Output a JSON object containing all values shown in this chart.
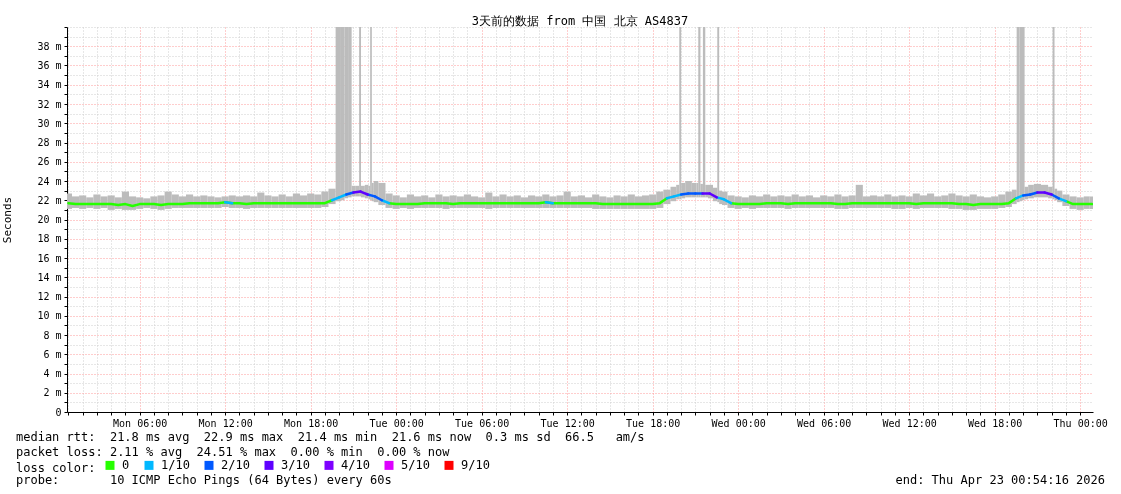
{
  "chart_data": {
    "type": "line",
    "title": "3天前的数据 from 中国 北京 AS4837",
    "ylabel": "Seconds",
    "legend_title": "loss color:",
    "legend": "bottom",
    "grid": true,
    "xlim": [
      "2026-04-20T00:54",
      "2026-04-23T00:54"
    ],
    "ylim": [
      0,
      40
    ],
    "xticks": [
      {
        "value": "2026-04-20T01:00",
        "label": null
      },
      {
        "value": "2026-04-20T02:00",
        "label": null
      },
      {
        "value": "2026-04-20T03:00",
        "label": null
      },
      {
        "value": "2026-04-20T04:00",
        "label": null
      },
      {
        "value": "2026-04-20T05:00",
        "label": null
      },
      {
        "value": "2026-04-20T06:00",
        "label": "Mon 06:00"
      },
      {
        "value": "2026-04-20T07:00",
        "label": null
      },
      {
        "value": "2026-04-20T08:00",
        "label": null
      },
      {
        "value": "2026-04-20T09:00",
        "label": null
      },
      {
        "value": "2026-04-20T10:00",
        "label": null
      },
      {
        "value": "2026-04-20T11:00",
        "label": null
      },
      {
        "value": "2026-04-20T12:00",
        "label": "Mon 12:00"
      },
      {
        "value": "2026-04-20T13:00",
        "label": null
      },
      {
        "value": "2026-04-20T14:00",
        "label": null
      },
      {
        "value": "2026-04-20T15:00",
        "label": null
      },
      {
        "value": "2026-04-20T16:00",
        "label": null
      },
      {
        "value": "2026-04-20T17:00",
        "label": null
      },
      {
        "value": "2026-04-20T18:00",
        "label": "Mon 18:00"
      },
      {
        "value": "2026-04-20T19:00",
        "label": null
      },
      {
        "value": "2026-04-20T20:00",
        "label": null
      },
      {
        "value": "2026-04-20T21:00",
        "label": null
      },
      {
        "value": "2026-04-20T22:00",
        "label": null
      },
      {
        "value": "2026-04-20T23:00",
        "label": null
      },
      {
        "value": "2026-04-21T00:00",
        "label": "Tue 00:00"
      },
      {
        "value": "2026-04-21T01:00",
        "label": null
      },
      {
        "value": "2026-04-21T02:00",
        "label": null
      },
      {
        "value": "2026-04-21T03:00",
        "label": null
      },
      {
        "value": "2026-04-21T04:00",
        "label": null
      },
      {
        "value": "2026-04-21T05:00",
        "label": null
      },
      {
        "value": "2026-04-21T06:00",
        "label": "Tue 06:00"
      },
      {
        "value": "2026-04-21T07:00",
        "label": null
      },
      {
        "value": "2026-04-21T08:00",
        "label": null
      },
      {
        "value": "2026-04-21T09:00",
        "label": null
      },
      {
        "value": "2026-04-21T10:00",
        "label": null
      },
      {
        "value": "2026-04-21T11:00",
        "label": null
      },
      {
        "value": "2026-04-21T12:00",
        "label": "Tue 12:00"
      },
      {
        "value": "2026-04-21T13:00",
        "label": null
      },
      {
        "value": "2026-04-21T14:00",
        "label": null
      },
      {
        "value": "2026-04-21T15:00",
        "label": null
      },
      {
        "value": "2026-04-21T16:00",
        "label": null
      },
      {
        "value": "2026-04-21T17:00",
        "label": null
      },
      {
        "value": "2026-04-21T18:00",
        "label": "Tue 18:00"
      },
      {
        "value": "2026-04-21T19:00",
        "label": null
      },
      {
        "value": "2026-04-21T20:00",
        "label": null
      },
      {
        "value": "2026-04-21T21:00",
        "label": null
      },
      {
        "value": "2026-04-21T22:00",
        "label": null
      },
      {
        "value": "2026-04-21T23:00",
        "label": null
      },
      {
        "value": "2026-04-22T00:00",
        "label": "Wed 00:00"
      },
      {
        "value": "2026-04-22T01:00",
        "label": null
      },
      {
        "value": "2026-04-22T02:00",
        "label": null
      },
      {
        "value": "2026-04-22T03:00",
        "label": null
      },
      {
        "value": "2026-04-22T04:00",
        "label": null
      },
      {
        "value": "2026-04-22T05:00",
        "label": null
      },
      {
        "value": "2026-04-22T06:00",
        "label": "Wed 06:00"
      },
      {
        "value": "2026-04-22T07:00",
        "label": null
      },
      {
        "value": "2026-04-22T08:00",
        "label": null
      },
      {
        "value": "2026-04-22T09:00",
        "label": null
      },
      {
        "value": "2026-04-22T10:00",
        "label": null
      },
      {
        "value": "2026-04-22T11:00",
        "label": null
      },
      {
        "value": "2026-04-22T12:00",
        "label": "Wed 12:00"
      },
      {
        "value": "2026-04-22T13:00",
        "label": null
      },
      {
        "value": "2026-04-22T14:00",
        "label": null
      },
      {
        "value": "2026-04-22T15:00",
        "label": null
      },
      {
        "value": "2026-04-22T16:00",
        "label": null
      },
      {
        "value": "2026-04-22T17:00",
        "label": null
      },
      {
        "value": "2026-04-22T18:00",
        "label": "Wed 18:00"
      },
      {
        "value": "2026-04-22T19:00",
        "label": null
      },
      {
        "value": "2026-04-22T20:00",
        "label": null
      },
      {
        "value": "2026-04-22T21:00",
        "label": null
      },
      {
        "value": "2026-04-22T22:00",
        "label": null
      },
      {
        "value": "2026-04-22T23:00",
        "label": null
      },
      {
        "value": "2026-04-23T00:00",
        "label": "Thu 00:00"
      }
    ],
    "yticks": [
      0,
      {
        "value": 1,
        "label": null
      },
      {
        "value": 2,
        "label": "2 m"
      },
      {
        "value": 3,
        "label": null
      },
      {
        "value": 4,
        "label": "4 m"
      },
      {
        "value": 5,
        "label": null
      },
      {
        "value": 6,
        "label": "6 m"
      },
      {
        "value": 7,
        "label": null
      },
      {
        "value": 8,
        "label": "8 m"
      },
      {
        "value": 9,
        "label": null
      },
      {
        "value": 10,
        "label": "10 m"
      },
      {
        "value": 11,
        "label": null
      },
      {
        "value": 12,
        "label": "12 m"
      },
      {
        "value": 13,
        "label": null
      },
      {
        "value": 14,
        "label": "14 m"
      },
      {
        "value": 15,
        "label": null
      },
      {
        "value": 16,
        "label": "16 m"
      },
      {
        "value": 17,
        "label": null
      },
      {
        "value": 18,
        "label": "18 m"
      },
      {
        "value": 19,
        "label": null
      },
      {
        "value": 20,
        "label": "20 m"
      },
      {
        "value": 21,
        "label": null
      },
      {
        "value": 22,
        "label": "22 m"
      },
      {
        "value": 23,
        "label": null
      },
      {
        "value": 24,
        "label": "24 m"
      },
      {
        "value": 25,
        "label": null
      },
      {
        "value": 26,
        "label": "26 m"
      },
      {
        "value": 27,
        "label": null
      },
      {
        "value": 28,
        "label": "28 m"
      },
      {
        "value": 29,
        "label": null
      },
      {
        "value": 30,
        "label": "30 m"
      },
      {
        "value": 31,
        "label": null
      },
      {
        "value": 32,
        "label": "32 m"
      },
      {
        "value": 33,
        "label": null
      },
      {
        "value": 34,
        "label": "34 m"
      },
      {
        "value": 35,
        "label": null
      },
      {
        "value": 36,
        "label": "36 m"
      },
      {
        "value": 37,
        "label": null
      },
      {
        "value": 38,
        "label": "38 m"
      },
      {
        "value": 39,
        "label": null
      },
      {
        "value": 40,
        "label": null
      }
    ],
    "x": [
      "2026-04-20T01:00",
      "2026-04-20T01:30",
      "2026-04-20T02:00",
      "2026-04-20T02:30",
      "2026-04-20T03:00",
      "2026-04-20T03:30",
      "2026-04-20T04:00",
      "2026-04-20T04:30",
      "2026-04-20T05:00",
      "2026-04-20T05:30",
      "2026-04-20T06:00",
      "2026-04-20T06:30",
      "2026-04-20T07:00",
      "2026-04-20T07:30",
      "2026-04-20T08:00",
      "2026-04-20T08:30",
      "2026-04-20T09:00",
      "2026-04-20T09:30",
      "2026-04-20T10:00",
      "2026-04-20T10:30",
      "2026-04-20T11:00",
      "2026-04-20T11:30",
      "2026-04-20T12:00",
      "2026-04-20T12:30",
      "2026-04-20T13:00",
      "2026-04-20T13:30",
      "2026-04-20T14:00",
      "2026-04-20T14:30",
      "2026-04-20T15:00",
      "2026-04-20T15:30",
      "2026-04-20T16:00",
      "2026-04-20T16:30",
      "2026-04-20T17:00",
      "2026-04-20T17:30",
      "2026-04-20T18:00",
      "2026-04-20T18:30",
      "2026-04-20T19:00",
      "2026-04-20T19:30",
      "2026-04-20T20:00",
      "2026-04-20T20:30",
      "2026-04-20T21:00",
      "2026-04-20T21:30",
      "2026-04-20T22:00",
      "2026-04-20T22:30",
      "2026-04-20T23:00",
      "2026-04-20T23:30",
      "2026-04-21T00:00",
      "2026-04-21T00:30",
      "2026-04-21T01:00",
      "2026-04-21T01:30",
      "2026-04-21T02:00",
      "2026-04-21T02:30",
      "2026-04-21T03:00",
      "2026-04-21T03:30",
      "2026-04-21T04:00",
      "2026-04-21T04:30",
      "2026-04-21T05:00",
      "2026-04-21T05:30",
      "2026-04-21T06:00",
      "2026-04-21T06:30",
      "2026-04-21T07:00",
      "2026-04-21T07:30",
      "2026-04-21T08:00",
      "2026-04-21T08:30",
      "2026-04-21T09:00",
      "2026-04-21T09:30",
      "2026-04-21T10:00",
      "2026-04-21T10:30",
      "2026-04-21T11:00",
      "2026-04-21T11:30",
      "2026-04-21T12:00",
      "2026-04-21T12:30",
      "2026-04-21T13:00",
      "2026-04-21T13:30",
      "2026-04-21T14:00",
      "2026-04-21T14:30",
      "2026-04-21T15:00",
      "2026-04-21T15:30",
      "2026-04-21T16:00",
      "2026-04-21T16:30",
      "2026-04-21T17:00",
      "2026-04-21T17:30",
      "2026-04-21T18:00",
      "2026-04-21T18:30",
      "2026-04-21T19:00",
      "2026-04-21T19:30",
      "2026-04-21T20:00",
      "2026-04-21T20:30",
      "2026-04-21T21:00",
      "2026-04-21T21:30",
      "2026-04-21T22:00",
      "2026-04-21T22:30",
      "2026-04-21T23:00",
      "2026-04-21T23:30",
      "2026-04-22T00:00",
      "2026-04-22T00:30",
      "2026-04-22T01:00",
      "2026-04-22T01:30",
      "2026-04-22T02:00",
      "2026-04-22T02:30",
      "2026-04-22T03:00",
      "2026-04-22T03:30",
      "2026-04-22T04:00",
      "2026-04-22T04:30",
      "2026-04-22T05:00",
      "2026-04-22T05:30",
      "2026-04-22T06:00",
      "2026-04-22T06:30",
      "2026-04-22T07:00",
      "2026-04-22T07:30",
      "2026-04-22T08:00",
      "2026-04-22T08:30",
      "2026-04-22T09:00",
      "2026-04-22T09:30",
      "2026-04-22T10:00",
      "2026-04-22T10:30",
      "2026-04-22T11:00",
      "2026-04-22T11:30",
      "2026-04-22T12:00",
      "2026-04-22T12:30",
      "2026-04-22T13:00",
      "2026-04-22T13:30",
      "2026-04-22T14:00",
      "2026-04-22T14:30",
      "2026-04-22T15:00",
      "2026-04-22T15:30",
      "2026-04-22T16:00",
      "2026-04-22T16:30",
      "2026-04-22T17:00",
      "2026-04-22T17:30",
      "2026-04-22T18:00",
      "2026-04-22T18:30",
      "2026-04-22T19:00",
      "2026-04-22T19:30",
      "2026-04-22T20:00",
      "2026-04-22T20:30",
      "2026-04-22T21:00",
      "2026-04-22T21:30",
      "2026-04-22T22:00",
      "2026-04-22T22:30",
      "2026-04-22T23:00",
      "2026-04-22T23:30",
      "2026-04-23T00:00",
      "2026-04-23T00:30",
      "2026-04-23T00:50"
    ],
    "series": [
      {
        "type": "bar",
        "color": "#bcbcbc",
        "x": [
          "2026-04-20T01:00",
          "2026-04-20T01:30",
          "2026-04-20T02:00",
          "2026-04-20T02:30",
          "2026-04-20T03:00",
          "2026-04-20T03:30",
          "2026-04-20T04:00",
          "2026-04-20T04:30",
          "2026-04-20T05:00",
          "2026-04-20T05:30",
          "2026-04-20T06:00",
          "2026-04-20T06:30",
          "2026-04-20T07:00",
          "2026-04-20T07:30",
          "2026-04-20T08:00",
          "2026-04-20T08:30",
          "2026-04-20T09:00",
          "2026-04-20T09:30",
          "2026-04-20T10:00",
          "2026-04-20T10:30",
          "2026-04-20T11:00",
          "2026-04-20T11:30",
          "2026-04-20T12:00",
          "2026-04-20T12:30",
          "2026-04-20T13:00",
          "2026-04-20T13:30",
          "2026-04-20T14:00",
          "2026-04-20T14:30",
          "2026-04-20T15:00",
          "2026-04-20T15:30",
          "2026-04-20T16:00",
          "2026-04-20T16:30",
          "2026-04-20T17:00",
          "2026-04-20T17:30",
          "2026-04-20T18:00",
          "2026-04-20T18:30",
          "2026-04-20T19:00",
          "2026-04-20T19:30",
          "2026-04-20T20:00",
          "2026-04-20T20:15",
          "2026-04-20T20:30",
          "2026-04-20T20:45",
          "2026-04-20T21:00",
          "2026-04-20T21:20",
          "2026-04-20T21:28",
          "2026-04-20T21:36",
          "2026-04-20T22:00",
          "2026-04-20T22:07",
          "2026-04-20T22:14",
          "2026-04-20T22:21",
          "2026-04-20T22:30",
          "2026-04-20T23:00",
          "2026-04-20T23:30",
          "2026-04-21T00:00",
          "2026-04-21T00:30",
          "2026-04-21T01:00",
          "2026-04-21T01:30",
          "2026-04-21T02:00",
          "2026-04-21T02:30",
          "2026-04-21T03:00",
          "2026-04-21T03:30",
          "2026-04-21T04:00",
          "2026-04-21T04:30",
          "2026-04-21T05:00",
          "2026-04-21T05:30",
          "2026-04-21T06:00",
          "2026-04-21T06:30",
          "2026-04-21T07:00",
          "2026-04-21T07:30",
          "2026-04-21T08:00",
          "2026-04-21T08:30",
          "2026-04-21T09:00",
          "2026-04-21T09:30",
          "2026-04-21T10:00",
          "2026-04-21T10:30",
          "2026-04-21T11:00",
          "2026-04-21T11:30",
          "2026-04-21T12:00",
          "2026-04-21T12:30",
          "2026-04-21T13:00",
          "2026-04-21T13:30",
          "2026-04-21T14:00",
          "2026-04-21T14:30",
          "2026-04-21T15:00",
          "2026-04-21T15:30",
          "2026-04-21T16:00",
          "2026-04-21T16:30",
          "2026-04-21T17:00",
          "2026-04-21T17:30",
          "2026-04-21T18:00",
          "2026-04-21T18:30",
          "2026-04-21T19:00",
          "2026-04-21T19:30",
          "2026-04-21T19:48",
          "2026-04-21T19:56",
          "2026-04-21T20:04",
          "2026-04-21T20:30",
          "2026-04-21T21:00",
          "2026-04-21T21:08",
          "2026-04-21T21:16",
          "2026-04-21T21:26",
          "2026-04-21T21:37",
          "2026-04-21T21:46",
          "2026-04-21T22:00",
          "2026-04-21T22:28",
          "2026-04-21T22:36",
          "2026-04-21T22:44",
          "2026-04-21T23:00",
          "2026-04-21T23:30",
          "2026-04-22T00:00",
          "2026-04-22T00:30",
          "2026-04-22T01:00",
          "2026-04-22T01:30",
          "2026-04-22T02:00",
          "2026-04-22T02:30",
          "2026-04-22T03:00",
          "2026-04-22T03:30",
          "2026-04-22T04:00",
          "2026-04-22T04:30",
          "2026-04-22T05:00",
          "2026-04-22T05:30",
          "2026-04-22T06:00",
          "2026-04-22T06:30",
          "2026-04-22T07:00",
          "2026-04-22T07:30",
          "2026-04-22T08:00",
          "2026-04-22T08:30",
          "2026-04-22T09:00",
          "2026-04-22T09:30",
          "2026-04-22T10:00",
          "2026-04-22T10:30",
          "2026-04-22T11:00",
          "2026-04-22T11:30",
          "2026-04-22T12:00",
          "2026-04-22T12:30",
          "2026-04-22T13:00",
          "2026-04-22T13:30",
          "2026-04-22T14:00",
          "2026-04-22T14:30",
          "2026-04-22T15:00",
          "2026-04-22T15:30",
          "2026-04-22T16:00",
          "2026-04-22T16:30",
          "2026-04-22T17:00",
          "2026-04-22T17:30",
          "2026-04-22T18:00",
          "2026-04-22T18:30",
          "2026-04-22T19:00",
          "2026-04-22T19:25",
          "2026-04-22T19:40",
          "2026-04-22T19:50",
          "2026-04-22T20:00",
          "2026-04-22T20:12",
          "2026-04-22T20:30",
          "2026-04-22T21:00",
          "2026-04-22T21:30",
          "2026-04-22T22:00",
          "2026-04-22T22:08",
          "2026-04-22T22:16",
          "2026-04-22T22:30",
          "2026-04-22T23:00",
          "2026-04-22T23:30",
          "2026-04-23T00:00",
          "2026-04-23T00:30",
          "2026-04-23T00:50"
        ],
        "base": [
          21.1,
          21.2,
          21.1,
          21.2,
          21.1,
          21.2,
          21.0,
          21.1,
          21.0,
          21.0,
          21.1,
          21.2,
          21.1,
          21.0,
          21.1,
          21.2,
          21.2,
          21.2,
          21.2,
          21.2,
          21.2,
          21.2,
          21.3,
          21.2,
          21.2,
          21.1,
          21.2,
          21.2,
          21.2,
          21.2,
          21.2,
          21.2,
          21.2,
          21.2,
          21.2,
          21.2,
          21.3,
          21.6,
          21.9,
          22.0,
          22.2,
          22.3,
          22.4,
          22.4,
          22.4,
          22.3,
          22.2,
          22.1,
          22.0,
          21.9,
          21.8,
          21.5,
          21.2,
          21.1,
          21.2,
          21.1,
          21.2,
          21.2,
          21.2,
          21.2,
          21.1,
          21.2,
          21.2,
          21.2,
          21.2,
          21.2,
          21.1,
          21.2,
          21.2,
          21.2,
          21.2,
          21.2,
          21.2,
          21.2,
          21.2,
          21.2,
          21.2,
          21.2,
          21.2,
          21.2,
          21.2,
          21.1,
          21.1,
          21.1,
          21.1,
          21.1,
          21.1,
          21.1,
          21.1,
          21.1,
          21.2,
          21.6,
          21.9,
          22.1,
          22.1,
          22.2,
          22.3,
          22.3,
          22.3,
          22.3,
          22.3,
          22.3,
          22.3,
          22.2,
          21.9,
          21.8,
          21.6,
          21.5,
          21.2,
          21.1,
          21.2,
          21.1,
          21.2,
          21.2,
          21.2,
          21.2,
          21.1,
          21.2,
          21.2,
          21.2,
          21.2,
          21.2,
          21.2,
          21.1,
          21.1,
          21.2,
          21.2,
          21.2,
          21.2,
          21.2,
          21.2,
          21.1,
          21.1,
          21.2,
          21.1,
          21.2,
          21.2,
          21.2,
          21.2,
          21.1,
          21.1,
          21.0,
          21.0,
          21.1,
          21.1,
          21.1,
          21.2,
          21.3,
          21.6,
          21.8,
          21.9,
          22.0,
          22.1,
          22.2,
          22.3,
          22.3,
          22.2,
          22.1,
          22.0,
          21.8,
          21.4,
          21.1,
          21.0,
          21.1,
          21.1
        ],
        "values": [
          1.6,
          1.2,
          1.4,
          1.1,
          1.5,
          1.2,
          1.5,
          1.2,
          1.9,
          1.4,
          1.2,
          1.0,
          1.3,
          1.5,
          1.8,
          1.4,
          1.2,
          1.4,
          1.2,
          1.3,
          1.2,
          1.1,
          1.1,
          1.3,
          1.2,
          1.4,
          1.2,
          1.6,
          1.3,
          1.2,
          1.4,
          1.2,
          1.5,
          1.3,
          1.5,
          1.4,
          1.6,
          1.6,
          18.1,
          18.0,
          17.8,
          17.7,
          1.1,
          1.1,
          17.6,
          1.2,
          1.4,
          1.4,
          18.0,
          1.9,
          2.2,
          2.3,
          1.5,
          1.4,
          1.1,
          1.5,
          1.2,
          1.3,
          1.1,
          1.4,
          1.3,
          1.3,
          1.2,
          1.4,
          1.2,
          1.1,
          1.7,
          1.2,
          1.4,
          1.2,
          1.3,
          1.1,
          1.3,
          1.2,
          1.4,
          1.2,
          1.3,
          1.7,
          1.2,
          1.3,
          1.1,
          1.5,
          1.3,
          1.2,
          1.4,
          1.3,
          1.5,
          1.3,
          1.4,
          1.5,
          1.7,
          1.5,
          1.5,
          1.5,
          17.9,
          1.6,
          1.7,
          1.5,
          1.5,
          17.7,
          1.4,
          17.7,
          1.3,
          1.4,
          1.4,
          18.2,
          1.4,
          1.4,
          1.3,
          1.3,
          1.1,
          1.4,
          1.2,
          1.4,
          1.2,
          1.3,
          1.3,
          1.4,
          1.2,
          1.3,
          1.1,
          1.3,
          1.2,
          1.5,
          1.3,
          1.3,
          2.4,
          1.2,
          1.3,
          1.2,
          1.4,
          1.3,
          1.4,
          1.2,
          1.6,
          1.3,
          1.5,
          1.2,
          1.3,
          1.6,
          1.4,
          1.4,
          1.6,
          1.3,
          1.2,
          1.3,
          1.4,
          1.6,
          1.5,
          18.2,
          18.1,
          18.0,
          1.3,
          1.4,
          1.4,
          1.3,
          1.2,
          17.9,
          1.2,
          1.2,
          1.2,
          1.3,
          1.3,
          1.3,
          1.3
        ]
      },
      {
        "name": "0",
        "color": "#26ff00",
        "values": [
          21.7,
          21.6,
          21.6,
          21.6,
          21.6,
          21.6,
          21.6,
          21.5,
          21.6,
          21.4,
          21.6,
          21.6,
          21.6,
          21.5,
          21.6,
          21.6,
          21.6,
          21.7,
          21.7,
          21.7,
          21.7,
          21.7,
          21.8,
          21.7,
          21.7,
          21.6,
          21.7,
          21.7,
          21.7,
          21.7,
          21.7,
          21.7,
          21.7,
          21.7,
          21.7,
          21.7,
          21.7,
          22.0,
          null,
          null,
          null,
          null,
          null,
          null,
          null,
          21.7,
          21.6,
          21.6,
          21.6,
          21.6,
          21.7,
          21.7,
          21.7,
          21.7,
          21.6,
          21.7,
          21.7,
          21.7,
          21.7,
          21.7,
          21.7,
          21.7,
          21.7,
          21.7,
          21.7,
          21.7,
          21.7,
          21.8,
          21.7,
          21.7,
          21.7,
          21.7,
          21.7,
          21.7,
          21.7,
          21.6,
          21.6,
          21.6,
          21.6,
          21.6,
          21.6,
          21.6,
          21.6,
          21.7,
          22.2,
          null,
          null,
          null,
          null,
          null,
          null,
          null,
          null,
          21.7,
          21.6,
          21.6,
          21.6,
          21.6,
          21.7,
          21.7,
          21.7,
          21.6,
          21.7,
          21.7,
          21.7,
          21.7,
          21.7,
          21.7,
          21.6,
          21.6,
          21.7,
          21.7,
          21.7,
          21.7,
          21.7,
          21.7,
          21.7,
          21.7,
          21.7,
          21.6,
          21.7,
          21.7,
          21.7,
          21.7,
          21.7,
          21.6,
          21.6,
          21.5,
          21.6,
          21.6,
          21.6,
          21.6,
          21.7,
          22.2,
          null,
          null,
          null,
          null,
          null,
          null,
          21.9,
          21.6,
          21.6,
          21.6,
          21.6
        ]
      },
      {
        "name": "1/10",
        "color": "#00b8ff",
        "values": [
          null,
          null,
          null,
          null,
          null,
          null,
          null,
          null,
          null,
          null,
          null,
          null,
          null,
          null,
          null,
          null,
          null,
          null,
          null,
          null,
          null,
          null,
          21.8,
          21.7,
          null,
          null,
          null,
          null,
          null,
          null,
          null,
          null,
          null,
          null,
          null,
          null,
          null,
          22.0,
          22.3,
          22.6,
          null,
          null,
          null,
          null,
          22.0,
          21.7,
          null,
          null,
          null,
          null,
          null,
          null,
          null,
          null,
          null,
          null,
          null,
          null,
          null,
          null,
          null,
          null,
          null,
          null,
          null,
          null,
          null,
          21.8,
          21.7,
          null,
          null,
          null,
          null,
          null,
          null,
          null,
          null,
          null,
          null,
          null,
          null,
          null,
          null,
          null,
          22.2,
          22.4,
          22.6,
          null,
          null,
          null,
          null,
          22.3,
          22.1,
          21.7,
          null,
          null,
          null,
          null,
          null,
          null,
          null,
          null,
          null,
          null,
          null,
          null,
          null,
          null,
          null,
          null,
          null,
          null,
          null,
          null,
          null,
          null,
          null,
          null,
          null,
          null,
          null,
          null,
          null,
          null,
          null,
          null,
          null,
          null,
          null,
          null,
          null,
          null,
          null,
          22.2,
          22.5,
          null,
          null,
          null,
          null,
          22.2,
          21.9,
          null,
          null,
          null,
          null
        ]
      },
      {
        "name": "2/10",
        "color": "#0059ff",
        "values": [
          null,
          null,
          null,
          null,
          null,
          null,
          null,
          null,
          null,
          null,
          null,
          null,
          null,
          null,
          null,
          null,
          null,
          null,
          null,
          null,
          null,
          null,
          null,
          null,
          null,
          null,
          null,
          null,
          null,
          null,
          null,
          null,
          null,
          null,
          null,
          null,
          null,
          null,
          null,
          22.6,
          22.8,
          null,
          22.6,
          22.4,
          22.0,
          null,
          null,
          null,
          null,
          null,
          null,
          null,
          null,
          null,
          null,
          null,
          null,
          null,
          null,
          null,
          null,
          null,
          null,
          null,
          null,
          null,
          null,
          null,
          null,
          null,
          null,
          null,
          null,
          null,
          null,
          null,
          null,
          null,
          null,
          null,
          null,
          null,
          null,
          null,
          null,
          null,
          22.6,
          22.7,
          22.7,
          22.7,
          null,
          null,
          null,
          null,
          null,
          null,
          null,
          null,
          null,
          null,
          null,
          null,
          null,
          null,
          null,
          null,
          null,
          null,
          null,
          null,
          null,
          null,
          null,
          null,
          null,
          null,
          null,
          null,
          null,
          null,
          null,
          null,
          null,
          null,
          null,
          null,
          null,
          null,
          null,
          null,
          null,
          null,
          null,
          null,
          22.5,
          22.6,
          22.8,
          null,
          22.6,
          22.2,
          null,
          null,
          null,
          null,
          null
        ]
      },
      {
        "name": "3/10",
        "color": "#5e00ff",
        "values": [
          null,
          null,
          null,
          null,
          null,
          null,
          null,
          null,
          null,
          null,
          null,
          null,
          null,
          null,
          null,
          null,
          null,
          null,
          null,
          null,
          null,
          null,
          null,
          null,
          null,
          null,
          null,
          null,
          null,
          null,
          null,
          null,
          null,
          null,
          null,
          null,
          null,
          null,
          null,
          null,
          22.8,
          22.9,
          22.6,
          null,
          null,
          null,
          null,
          null,
          null,
          null,
          null,
          null,
          null,
          null,
          null,
          null,
          null,
          null,
          null,
          null,
          null,
          null,
          null,
          null,
          null,
          null,
          null,
          null,
          null,
          null,
          null,
          null,
          null,
          null,
          null,
          null,
          null,
          null,
          null,
          null,
          null,
          null,
          null,
          null,
          null,
          null,
          null,
          null,
          null,
          22.7,
          22.7,
          22.3,
          null,
          null,
          null,
          null,
          null,
          null,
          null,
          null,
          null,
          null,
          null,
          null,
          null,
          null,
          null,
          null,
          null,
          null,
          null,
          null,
          null,
          null,
          null,
          null,
          null,
          null,
          null,
          null,
          null,
          null,
          null,
          null,
          null,
          null,
          null,
          null,
          null,
          null,
          null,
          null,
          null,
          null,
          null,
          null,
          22.8,
          22.8,
          22.6,
          null,
          null,
          null,
          null,
          null,
          null
        ]
      },
      {
        "name": "4/10",
        "color": "#7e00ff",
        "values": [
          null,
          null,
          null,
          null,
          null,
          null,
          null,
          null,
          null,
          null,
          null,
          null,
          null,
          null,
          null,
          null,
          null,
          null,
          null,
          null,
          null,
          null,
          null,
          null,
          null,
          null,
          null,
          null,
          null,
          null,
          null,
          null,
          null,
          null,
          null,
          null,
          null,
          null,
          null,
          null,
          null,
          null,
          null,
          null,
          null,
          null,
          null,
          null,
          null,
          null,
          null,
          null,
          null,
          null,
          null,
          null,
          null,
          null,
          null,
          null,
          null,
          null,
          null,
          null,
          null,
          null,
          null,
          null,
          null,
          null,
          null,
          null,
          null,
          null,
          null,
          null,
          null,
          null,
          null,
          null,
          null,
          null,
          null,
          null,
          null,
          null,
          null,
          null,
          null,
          null,
          null,
          null,
          null,
          null,
          null,
          null,
          null,
          null,
          null,
          null,
          null,
          null,
          null,
          null,
          null,
          null,
          null,
          null,
          null,
          null,
          null,
          null,
          null,
          null,
          null,
          null,
          null,
          null,
          null,
          null,
          null,
          null,
          null,
          null,
          null,
          null,
          null,
          null,
          null,
          null,
          null,
          null,
          null,
          null,
          null,
          null,
          null,
          null,
          null,
          null,
          null,
          null,
          null,
          null,
          null
        ]
      },
      {
        "name": "5/10",
        "color": "#dd00ff",
        "values": [
          null,
          null,
          null,
          null,
          null,
          null,
          null,
          null,
          null,
          null,
          null,
          null,
          null,
          null,
          null,
          null,
          null,
          null,
          null,
          null,
          null,
          null,
          null,
          null,
          null,
          null,
          null,
          null,
          null,
          null,
          null,
          null,
          null,
          null,
          null,
          null,
          null,
          null,
          null,
          null,
          null,
          null,
          null,
          null,
          null,
          null,
          null,
          null,
          null,
          null,
          null,
          null,
          null,
          null,
          null,
          null,
          null,
          null,
          null,
          null,
          null,
          null,
          null,
          null,
          null,
          null,
          null,
          null,
          null,
          null,
          null,
          null,
          null,
          null,
          null,
          null,
          null,
          null,
          null,
          null,
          null,
          null,
          null,
          null,
          null,
          null,
          null,
          null,
          null,
          null,
          null,
          null,
          null,
          null,
          null,
          null,
          null,
          null,
          null,
          null,
          null,
          null,
          null,
          null,
          null,
          null,
          null,
          null,
          null,
          null,
          null,
          null,
          null,
          null,
          null,
          null,
          null,
          null,
          null,
          null,
          null,
          null,
          null,
          null,
          null,
          null,
          null,
          null,
          null,
          null,
          null,
          null,
          null,
          null,
          null,
          null,
          null,
          null,
          null,
          null,
          null,
          null,
          null,
          null,
          null
        ]
      },
      {
        "name": "9/10",
        "color": "#ff0000",
        "values": [
          null,
          null,
          null,
          null,
          null,
          null,
          null,
          null,
          null,
          null,
          null,
          null,
          null,
          null,
          null,
          null,
          null,
          null,
          null,
          null,
          null,
          null,
          null,
          null,
          null,
          null,
          null,
          null,
          null,
          null,
          null,
          null,
          null,
          null,
          null,
          null,
          null,
          null,
          null,
          null,
          null,
          null,
          null,
          null,
          null,
          null,
          null,
          null,
          null,
          null,
          null,
          null,
          null,
          null,
          null,
          null,
          null,
          null,
          null,
          null,
          null,
          null,
          null,
          null,
          null,
          null,
          null,
          null,
          null,
          null,
          null,
          null,
          null,
          null,
          null,
          null,
          null,
          null,
          null,
          null,
          null,
          null,
          null,
          null,
          null,
          null,
          null,
          null,
          null,
          null,
          null,
          null,
          null,
          null,
          null,
          null,
          null,
          null,
          null,
          null,
          null,
          null,
          null,
          null,
          null,
          null,
          null,
          null,
          null,
          null,
          null,
          null,
          null,
          null,
          null,
          null,
          null,
          null,
          null,
          null,
          null,
          null,
          null,
          null,
          null,
          null,
          null,
          null,
          null,
          null,
          null,
          null,
          null,
          null,
          null,
          null,
          null,
          null,
          null,
          null,
          null,
          null,
          null,
          null,
          null
        ]
      }
    ],
    "annotations": [
      "median rtt:  21.8 ms avg  22.9 ms max  21.4 ms min  21.6 ms now  0.3 ms sd  66.5   am/s",
      "packet loss: 2.11 % avg  24.51 % max  0.00 % min  0.00 % now",
      "probe:       10 ICMP Echo Pings (64 Bytes) every 60s",
      "end: Thu Apr 23 00:54:16 2026"
    ]
  }
}
